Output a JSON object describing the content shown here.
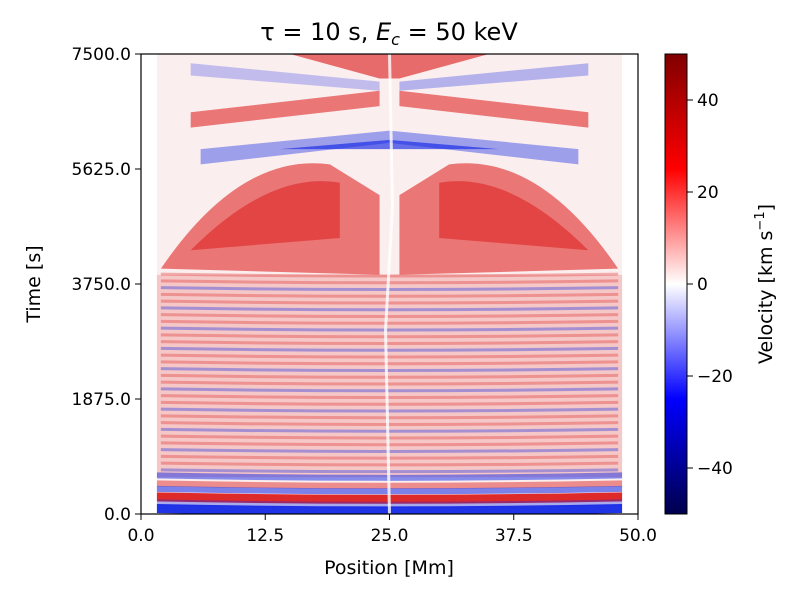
{
  "chart_data": {
    "type": "heatmap",
    "title_parts": [
      "τ = 10 s, ",
      "E",
      "c",
      " = 50 keV"
    ],
    "xlabel": "Position [Mm]",
    "ylabel": "Time [s]",
    "xlim": [
      0,
      50
    ],
    "ylim": [
      0,
      7500
    ],
    "xticks": [
      0,
      12.5,
      25,
      37.5,
      50
    ],
    "xtick_labels": [
      "0.0",
      "12.5",
      "25.0",
      "37.5",
      "50.0"
    ],
    "yticks": [
      0,
      1875,
      3750,
      5625,
      7500
    ],
    "ytick_labels": [
      "0.0",
      "1875.0",
      "3750.0",
      "5625.0",
      "7500.0"
    ],
    "colorbar": {
      "label_parts": [
        "Velocity [km s",
        "−1",
        "]"
      ],
      "range": [
        -50,
        50
      ],
      "colormap": "seismic",
      "ticks": [
        -40,
        -20,
        0,
        20,
        40
      ],
      "tick_labels": [
        "−40",
        "−20",
        "0",
        "20",
        "40"
      ]
    },
    "features": [
      {
        "description": "strong red velocity band near bottom",
        "time": 250,
        "velocity": 40
      },
      {
        "description": "strong blue velocity band at bottom",
        "time": 60,
        "velocity": -40
      },
      {
        "description": "broad red region mid to upper",
        "time_range": [
          3900,
          5600
        ],
        "velocity": 25
      },
      {
        "description": "blue diagonal fronts converging at center",
        "time": 6000,
        "velocity": -30
      },
      {
        "description": "red diagonal fronts at top",
        "time_range": [
          6300,
          7500
        ],
        "velocity": 30
      }
    ]
  }
}
